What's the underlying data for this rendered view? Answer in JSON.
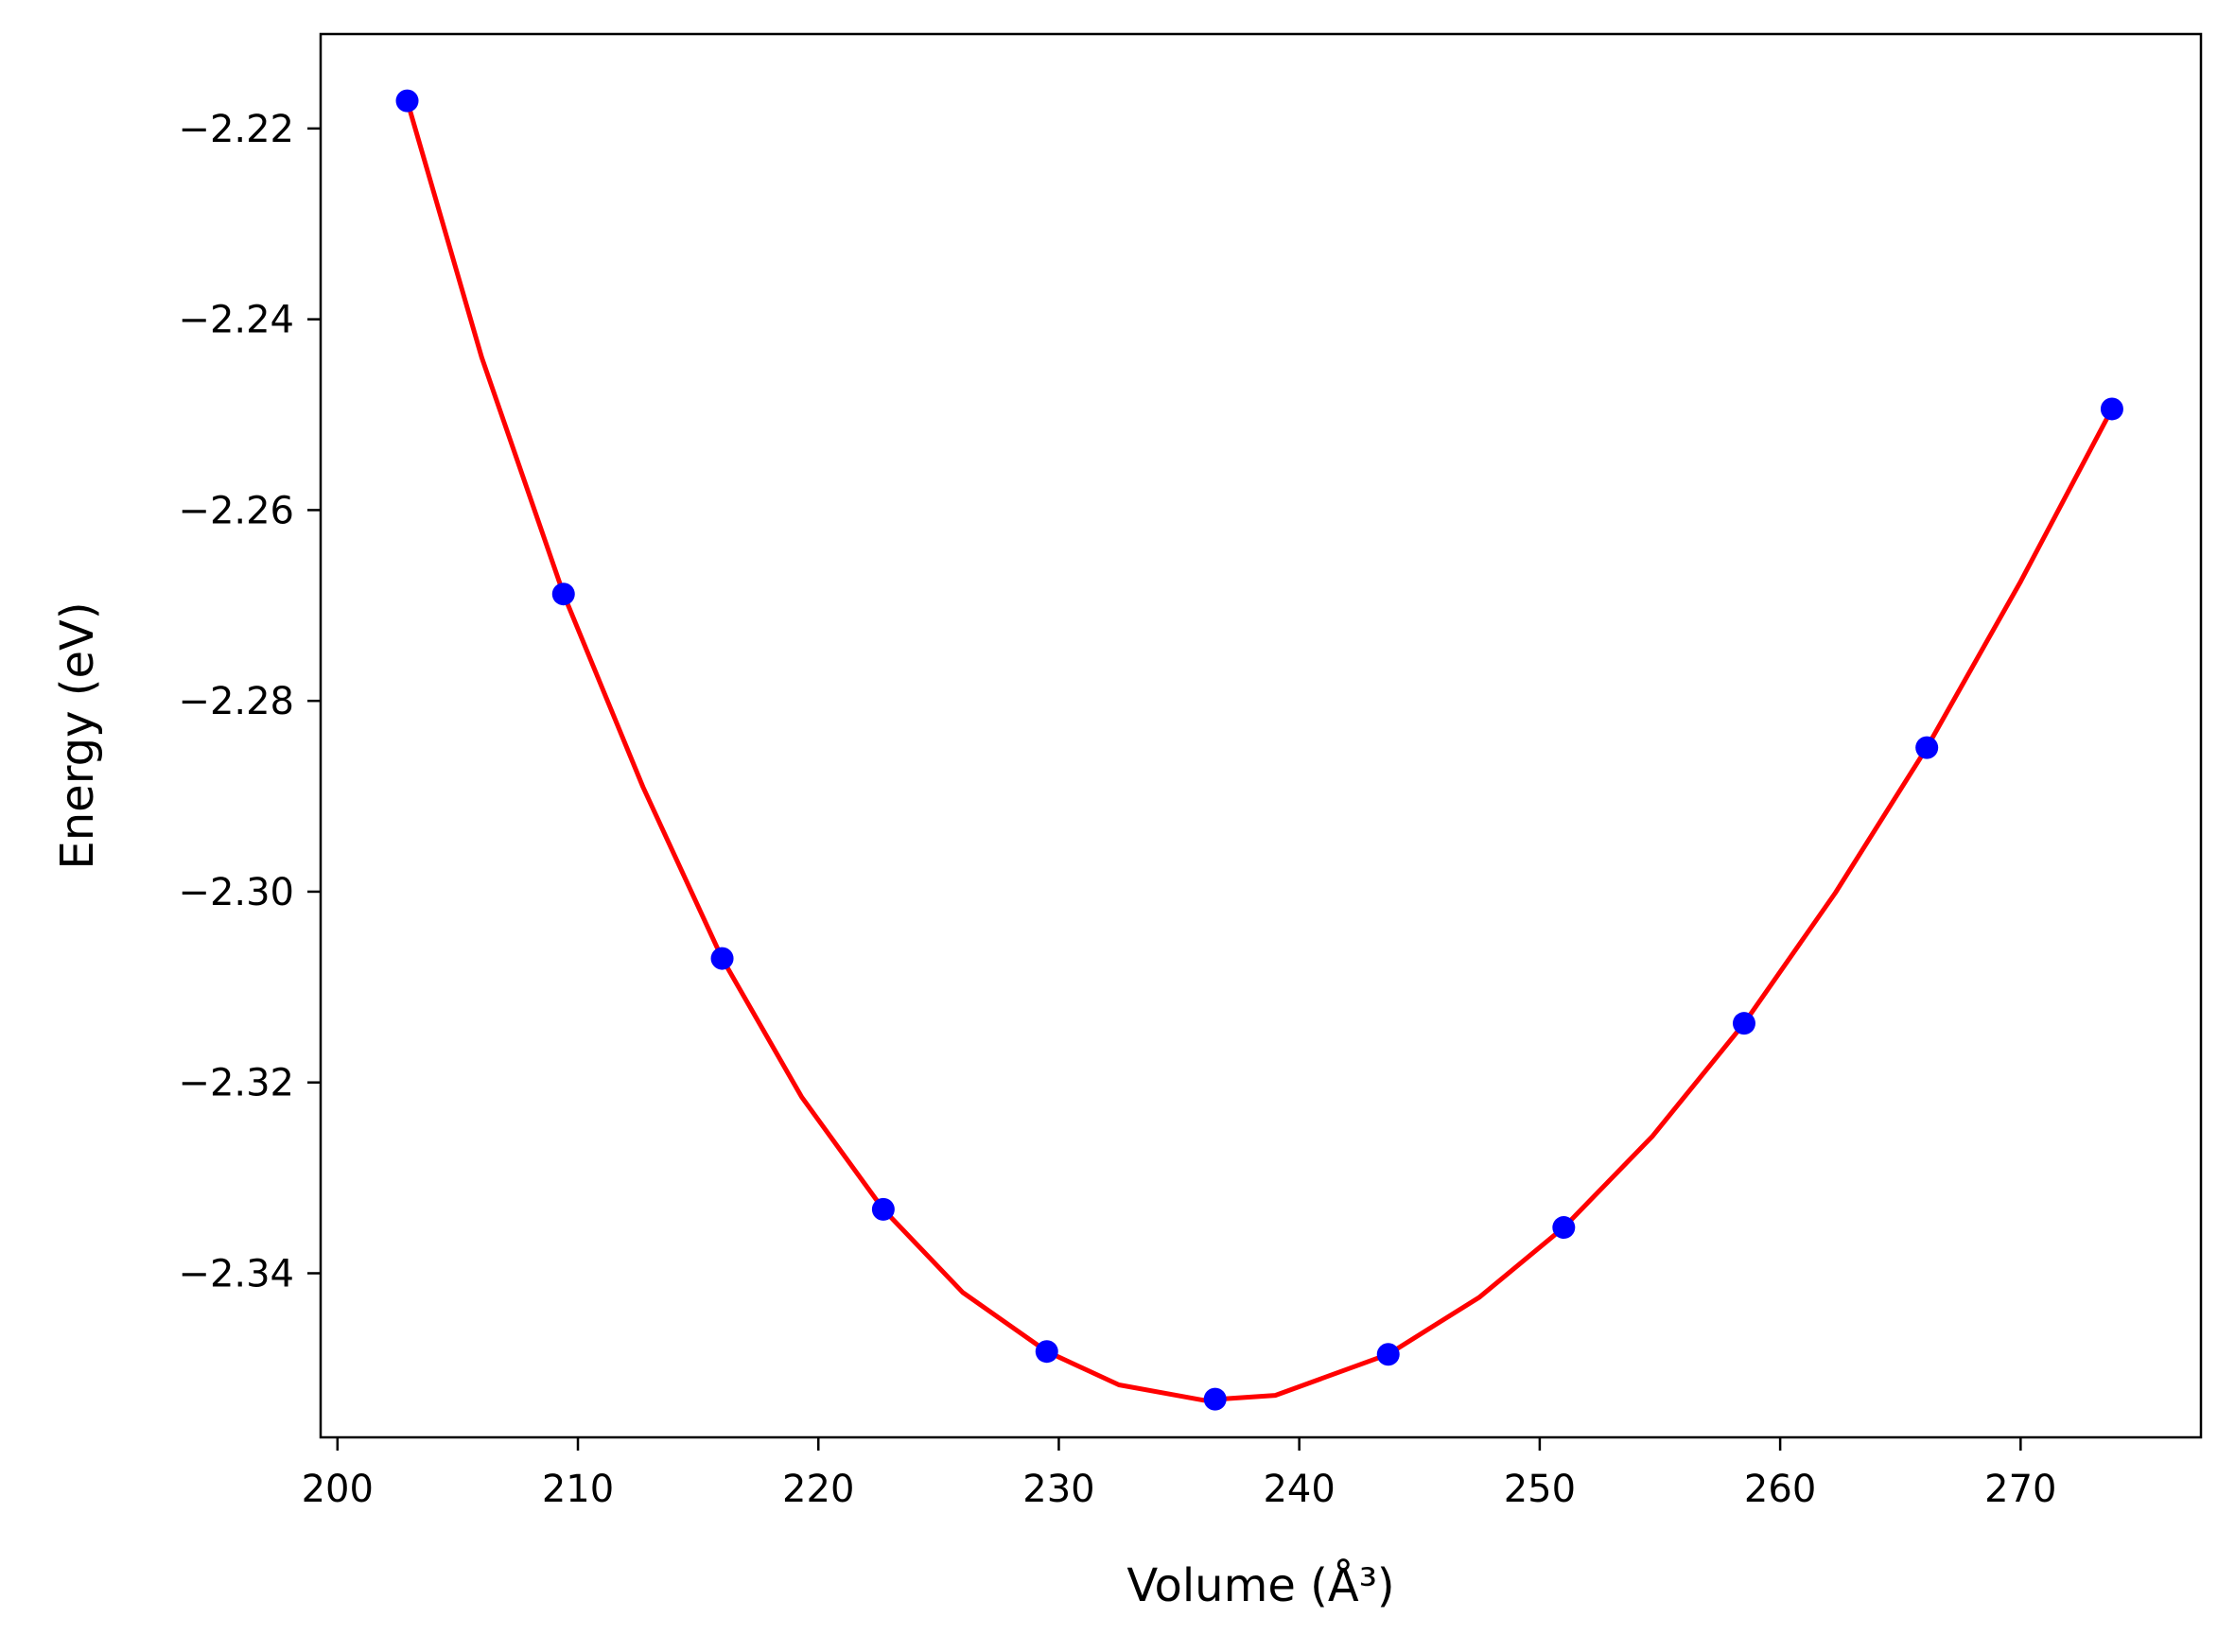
{
  "chart_data": {
    "type": "scatter",
    "title": "",
    "xlabel": "Volume (Å³)",
    "ylabel": "Energy (eV)",
    "xlim": [
      199.3,
      277.5
    ],
    "ylim": [
      -2.3572,
      -2.2101
    ],
    "x_ticks": [
      200,
      210,
      220,
      230,
      240,
      250,
      260,
      270
    ],
    "x_tick_labels": [
      "200",
      "210",
      "220",
      "230",
      "240",
      "250",
      "260",
      "270"
    ],
    "y_ticks": [
      -2.22,
      -2.24,
      -2.26,
      -2.28,
      -2.3,
      -2.32,
      -2.34
    ],
    "y_tick_labels": [
      "−2.22",
      "−2.24",
      "−2.26",
      "−2.28",
      "−2.30",
      "−2.32",
      "−2.34"
    ],
    "grid": false,
    "colors": {
      "points": "#0000ff",
      "fit": "#ff0000",
      "axes": "#000000"
    },
    "series": [
      {
        "kind": "points",
        "x": [
          202.9,
          209.4,
          216.0,
          222.7,
          229.5,
          236.5,
          243.7,
          251.0,
          258.5,
          266.1,
          273.8
        ],
        "y": [
          -2.2171,
          -2.2688,
          -2.307,
          -2.3333,
          -2.3482,
          -2.3532,
          -2.3485,
          -2.3352,
          -2.3138,
          -2.2849,
          -2.2494
        ]
      },
      {
        "kind": "fit",
        "x": [
          202.9,
          206.0,
          209.4,
          212.7,
          216.0,
          219.3,
          222.7,
          226.0,
          229.5,
          232.5,
          236.0,
          239.0,
          243.7,
          247.5,
          251.0,
          254.7,
          258.5,
          262.3,
          266.1,
          270.0,
          273.8
        ],
        "y": [
          -2.2171,
          -2.244,
          -2.2688,
          -2.289,
          -2.307,
          -2.3215,
          -2.3333,
          -2.342,
          -2.3482,
          -2.3517,
          -2.3533,
          -2.3528,
          -2.3485,
          -2.3425,
          -2.3352,
          -2.3256,
          -2.3138,
          -2.3001,
          -2.2849,
          -2.2675,
          -2.2494
        ]
      }
    ]
  }
}
